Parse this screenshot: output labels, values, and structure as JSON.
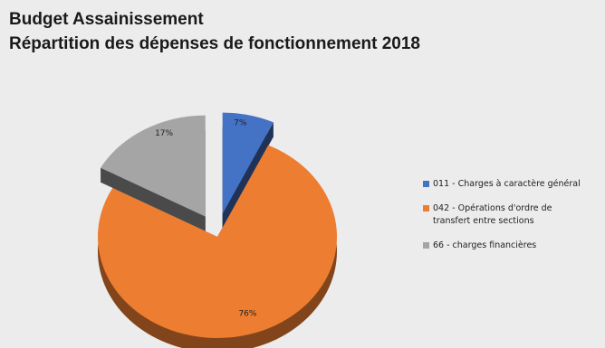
{
  "chart_data": {
    "type": "pie",
    "title": "Budget Assainissement",
    "subtitle": "Répartition des dépenses de fonctionnement 2018",
    "legend_position": "right",
    "exploded": true,
    "three_d": true,
    "slices": [
      {
        "label": "011 - Charges à caractère général",
        "value": 7,
        "display": "7%",
        "color": "#4472c4"
      },
      {
        "label": "042 - Opérations d'ordre de transfert entre sections",
        "value": 76,
        "display": "76%",
        "color": "#ed7d31"
      },
      {
        "label": "66 - charges financières",
        "value": 17,
        "display": "17%",
        "color": "#a5a5a5"
      }
    ],
    "legend": [
      "011 - Charges à caractère général",
      "042 - Opérations d'ordre de\ntransfert entre sections",
      "66 - charges financières"
    ]
  }
}
